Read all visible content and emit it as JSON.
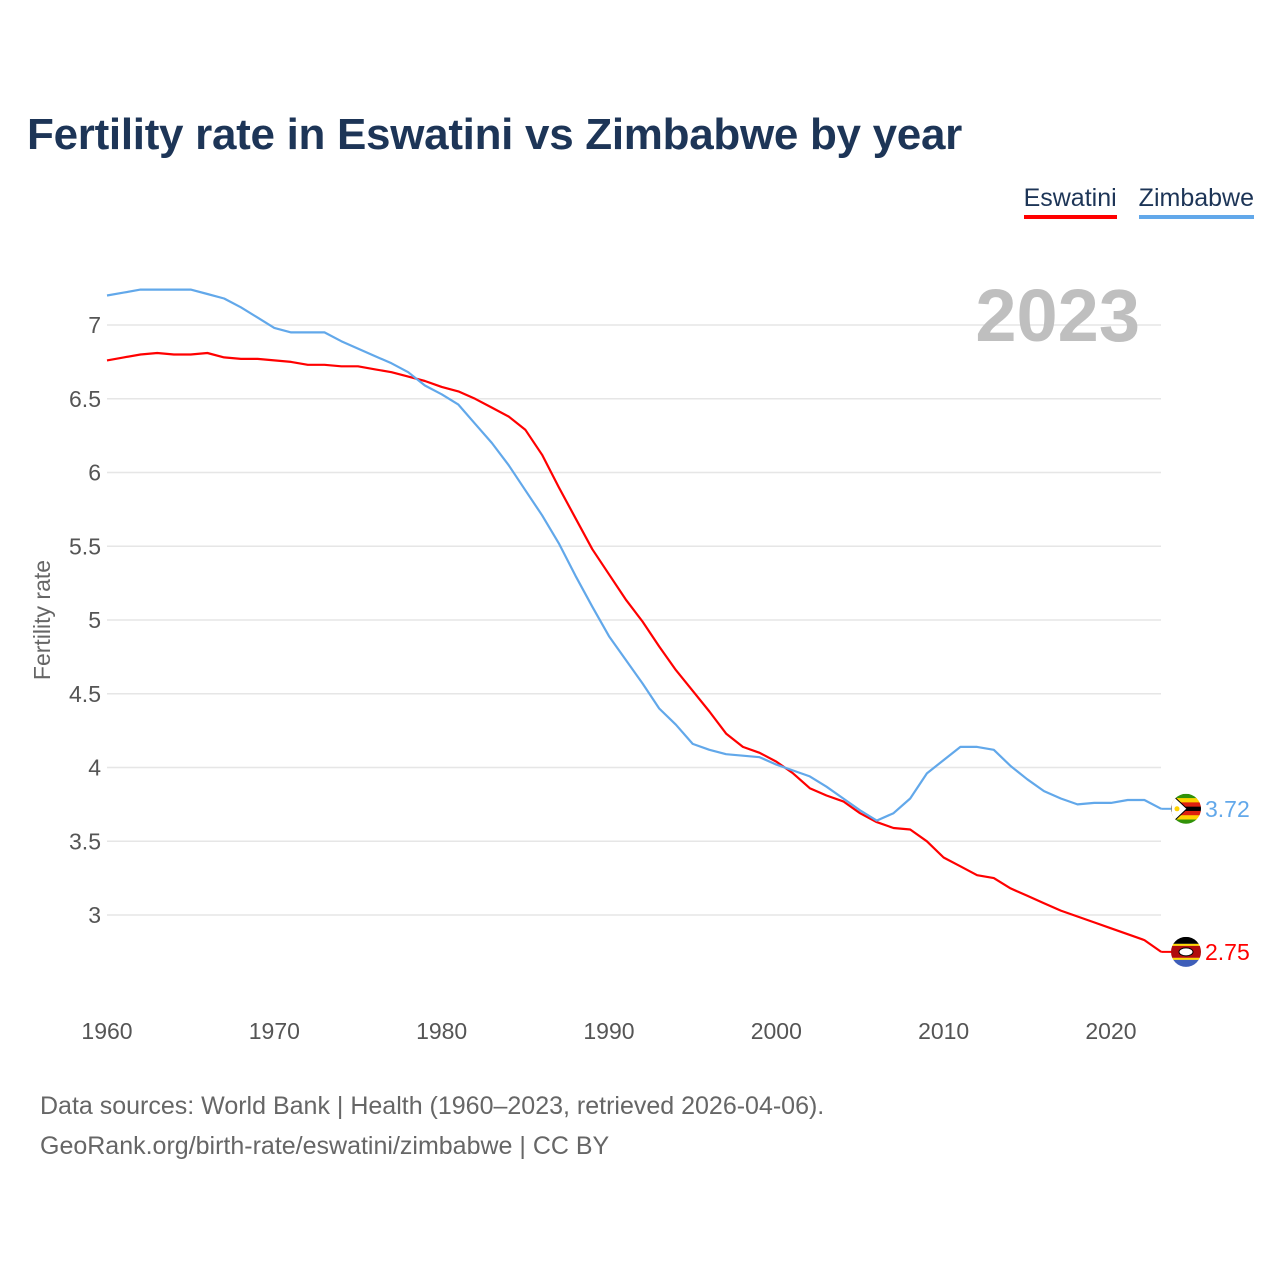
{
  "chart_data": {
    "type": "line",
    "title": "Fertility rate in Eswatini vs Zimbabwe by year",
    "xlabel": "",
    "ylabel": "Fertility rate",
    "year_label": "2023",
    "xlim": [
      1960,
      2023
    ],
    "ylim": [
      2.5,
      7.27
    ],
    "x_ticks": [
      "1960",
      "1970",
      "1980",
      "1990",
      "2000",
      "2010",
      "2020"
    ],
    "y_ticks": [
      "3",
      "3.5",
      "4",
      "4.5",
      "5",
      "5.5",
      "6",
      "6.5",
      "7"
    ],
    "grid": true,
    "legend_position": "top-right",
    "x": [
      1960,
      1961,
      1962,
      1963,
      1964,
      1965,
      1966,
      1967,
      1968,
      1969,
      1970,
      1971,
      1972,
      1973,
      1974,
      1975,
      1976,
      1977,
      1978,
      1979,
      1980,
      1981,
      1982,
      1983,
      1984,
      1985,
      1986,
      1987,
      1988,
      1989,
      1990,
      1991,
      1992,
      1993,
      1994,
      1995,
      1996,
      1997,
      1998,
      1999,
      2000,
      2001,
      2002,
      2003,
      2004,
      2005,
      2006,
      2007,
      2008,
      2009,
      2010,
      2011,
      2012,
      2013,
      2014,
      2015,
      2016,
      2017,
      2018,
      2019,
      2020,
      2021,
      2022,
      2023
    ],
    "series": [
      {
        "name": "Eswatini",
        "color": "#ff0000",
        "end_label": "2.75",
        "values": [
          6.76,
          6.78,
          6.8,
          6.81,
          6.8,
          6.8,
          6.81,
          6.78,
          6.77,
          6.77,
          6.76,
          6.75,
          6.73,
          6.73,
          6.72,
          6.72,
          6.7,
          6.68,
          6.65,
          6.62,
          6.58,
          6.55,
          6.5,
          6.44,
          6.38,
          6.29,
          6.12,
          5.9,
          5.69,
          5.48,
          5.31,
          5.14,
          4.99,
          4.82,
          4.66,
          4.52,
          4.38,
          4.23,
          4.14,
          4.1,
          4.04,
          3.96,
          3.86,
          3.81,
          3.77,
          3.69,
          3.63,
          3.59,
          3.58,
          3.5,
          3.39,
          3.33,
          3.27,
          3.25,
          3.18,
          3.13,
          3.08,
          3.03,
          2.99,
          2.95,
          2.91,
          2.87,
          2.83,
          2.75
        ]
      },
      {
        "name": "Zimbabwe",
        "color": "#62a8ea",
        "end_label": "3.72",
        "values": [
          7.2,
          7.22,
          7.24,
          7.24,
          7.24,
          7.24,
          7.21,
          7.18,
          7.12,
          7.05,
          6.98,
          6.95,
          6.95,
          6.95,
          6.89,
          6.84,
          6.79,
          6.74,
          6.68,
          6.59,
          6.53,
          6.46,
          6.33,
          6.2,
          6.05,
          5.88,
          5.71,
          5.52,
          5.3,
          5.09,
          4.89,
          4.73,
          4.57,
          4.4,
          4.29,
          4.16,
          4.12,
          4.09,
          4.08,
          4.07,
          4.02,
          3.98,
          3.94,
          3.87,
          3.79,
          3.71,
          3.64,
          3.69,
          3.79,
          3.96,
          4.05,
          4.14,
          4.14,
          4.12,
          4.01,
          3.92,
          3.84,
          3.79,
          3.75,
          3.76,
          3.76,
          3.78,
          3.78,
          3.72
        ]
      }
    ]
  },
  "legend": {
    "items": [
      "Eswatini",
      "Zimbabwe"
    ]
  },
  "footer": {
    "line1": "Data sources: World Bank | Health (1960–2023, retrieved 2026-04-06).",
    "line2": "GeoRank.org/birth-rate/eswatini/zimbabwe | CC BY"
  }
}
